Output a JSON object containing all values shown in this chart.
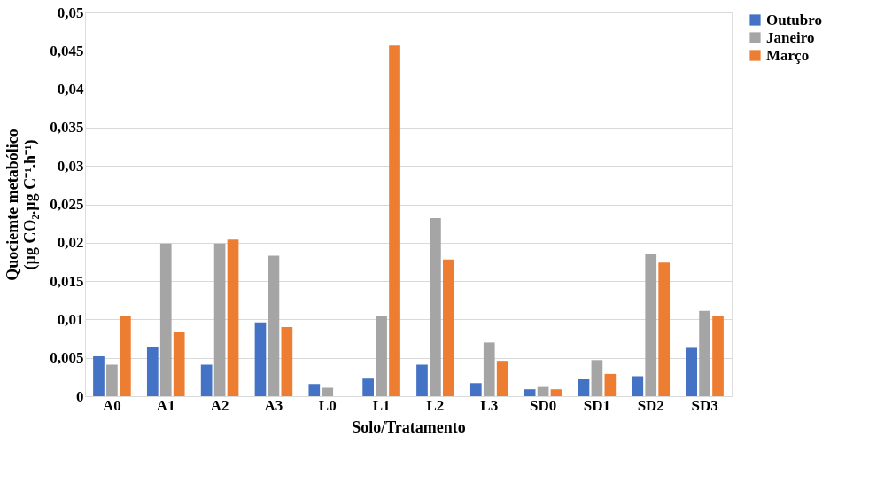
{
  "chart_data": {
    "type": "bar",
    "xlabel": "Solo/Tratamento",
    "ylabel": [
      "Quociemte  metabólico",
      "(µg CO₂.µg C⁻¹.h⁻¹)"
    ],
    "categories": [
      "A0",
      "A1",
      "A2",
      "A3",
      "L0",
      "L1",
      "L2",
      "L3",
      "SD0",
      "SD1",
      "SD2",
      "SD3"
    ],
    "series": [
      {
        "name": "Outubro",
        "color": "#4472c4",
        "values": [
          0.0052,
          0.0064,
          0.0041,
          0.0096,
          0.0016,
          0.0024,
          0.0041,
          0.0017,
          0.0009,
          0.0023,
          0.0026,
          0.0063
        ]
      },
      {
        "name": "Janeiro",
        "color": "#a5a5a5",
        "values": [
          0.0041,
          0.0199,
          0.0199,
          0.0183,
          0.0011,
          0.0105,
          0.0232,
          0.007,
          0.0012,
          0.0047,
          0.0186,
          0.0111
        ]
      },
      {
        "name": "Março",
        "color": "#ed7d31",
        "values": [
          0.0105,
          0.0083,
          0.0204,
          0.009,
          0,
          0.0457,
          0.0178,
          0.0046,
          0.0009,
          0.0029,
          0.0174,
          0.0104
        ]
      }
    ],
    "ylim": [
      0,
      0.05
    ],
    "yticks": [
      {
        "value": 0,
        "label": "0"
      },
      {
        "value": 0.005,
        "label": "0,005"
      },
      {
        "value": 0.01,
        "label": "0,01"
      },
      {
        "value": 0.015,
        "label": "0,015"
      },
      {
        "value": 0.02,
        "label": "0,02"
      },
      {
        "value": 0.025,
        "label": "0,025"
      },
      {
        "value": 0.03,
        "label": "0,03"
      },
      {
        "value": 0.035,
        "label": "0,035"
      },
      {
        "value": 0.04,
        "label": "0,04"
      },
      {
        "value": 0.045,
        "label": "0,045"
      },
      {
        "value": 0.05,
        "label": "0,05"
      }
    ],
    "grid": "y",
    "legend": "right"
  }
}
